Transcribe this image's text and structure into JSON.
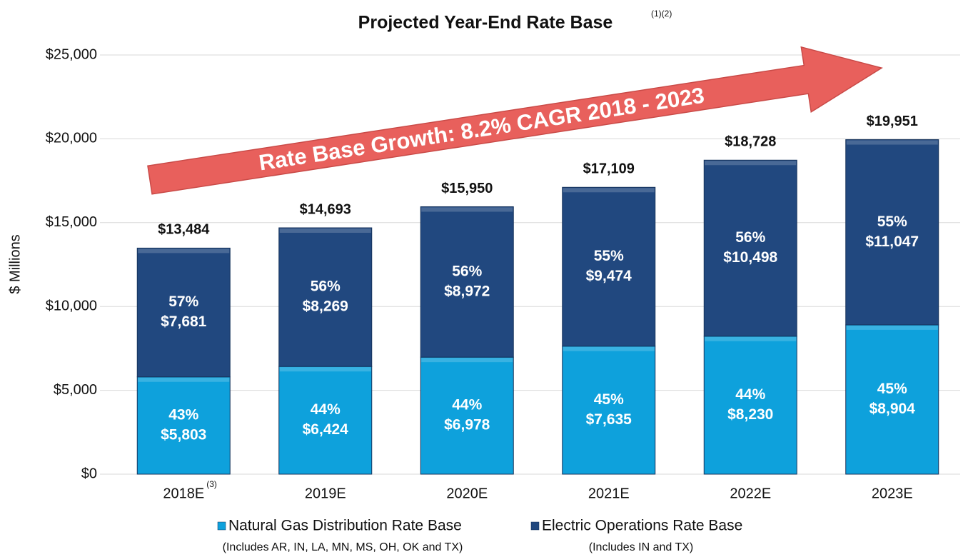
{
  "chart_data": {
    "type": "stacked_bar",
    "title": "Projected Year-End Rate Base",
    "title_note": "(1)(2)",
    "y_label": "$ Millions",
    "annotation": "Rate Base Growth:  8.2% CAGR 2018 - 2023",
    "categories": [
      "2018E",
      "2019E",
      "2020E",
      "2021E",
      "2022E",
      "2023E"
    ],
    "category_notes": [
      "(3)",
      null,
      null,
      null,
      null,
      null
    ],
    "series": [
      {
        "name": "Natural Gas Distribution Rate Base",
        "note": "(Includes AR, IN, LA, MN, MS, OH, OK and TX)",
        "color": "#0ea1dc",
        "values": [
          5803,
          6424,
          6978,
          7635,
          8230,
          8904
        ],
        "value_labels": [
          "$5,803",
          "$6,424",
          "$6,978",
          "$7,635",
          "$8,230",
          "$8,904"
        ],
        "shares": [
          43,
          44,
          44,
          45,
          44,
          45
        ],
        "share_labels": [
          "43%",
          "44%",
          "44%",
          "45%",
          "44%",
          "45%"
        ]
      },
      {
        "name": "Electric Operations Rate Base",
        "note": "(Includes IN and TX)",
        "color": "#21487f",
        "values": [
          7681,
          8269,
          8972,
          9474,
          10498,
          11047
        ],
        "value_labels": [
          "$7,681",
          "$8,269",
          "$8,972",
          "$9,474",
          "$10,498",
          "$11,047"
        ],
        "shares": [
          57,
          56,
          56,
          55,
          56,
          55
        ],
        "share_labels": [
          "57%",
          "56%",
          "56%",
          "55%",
          "56%",
          "55%"
        ]
      }
    ],
    "totals": [
      13484,
      14693,
      15950,
      17109,
      18728,
      19951
    ],
    "total_labels": [
      "$13,484",
      "$14,693",
      "$15,950",
      "$17,109",
      "$18,728",
      "$19,951"
    ],
    "ylim": [
      0,
      25000
    ],
    "yticks": [
      {
        "value": 0,
        "label": "$0"
      },
      {
        "value": 5000,
        "label": "$5,000"
      },
      {
        "value": 10000,
        "label": "$10,000"
      },
      {
        "value": 15000,
        "label": "$15,000"
      },
      {
        "value": 20000,
        "label": "$20,000"
      },
      {
        "value": 25000,
        "label": "$25,000"
      }
    ],
    "grid": true
  }
}
